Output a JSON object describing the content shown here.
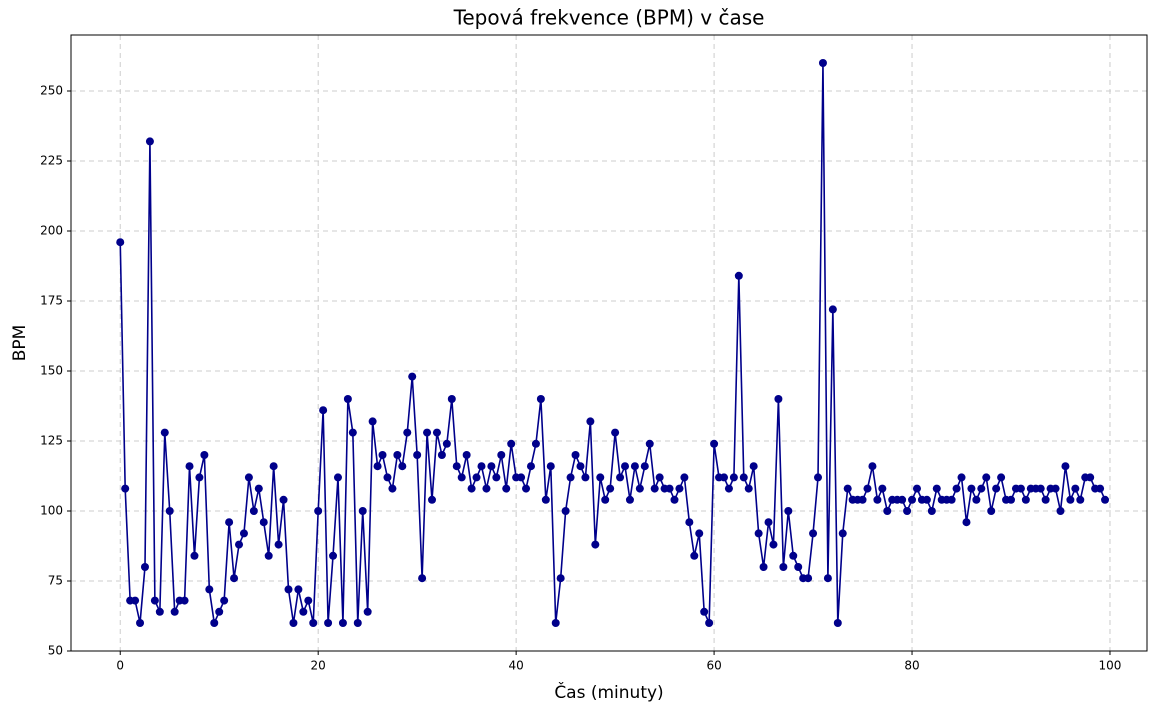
{
  "chart_data": {
    "type": "line",
    "title": "Tepová frekvence (BPM) v čase",
    "x_label": "Čas (minuty)",
    "y_label": "BPM",
    "x": [
      0,
      0.5,
      1,
      1.5,
      2,
      2.5,
      3,
      3.5,
      4,
      4.5,
      5,
      5.5,
      6,
      6.5,
      7,
      7.5,
      8,
      8.5,
      9,
      9.5,
      10,
      10.5,
      11,
      11.5,
      12,
      12.5,
      13,
      13.5,
      14,
      14.5,
      15,
      15.5,
      16,
      16.5,
      17,
      17.5,
      18,
      18.5,
      19,
      19.5,
      20,
      20.5,
      21,
      21.5,
      22,
      22.5,
      23,
      23.5,
      24,
      24.5,
      25,
      25.5,
      26,
      26.5,
      27,
      27.5,
      28,
      28.5,
      29,
      29.5,
      30,
      30.5,
      31,
      31.5,
      32,
      32.5,
      33,
      33.5,
      34,
      34.5,
      35,
      35.5,
      36,
      36.5,
      37,
      37.5,
      38,
      38.5,
      39,
      39.5,
      40,
      40.5,
      41,
      41.5,
      42,
      42.5,
      43,
      43.5,
      44,
      44.5,
      45,
      45.5,
      46,
      46.5,
      47,
      47.5,
      48,
      48.5,
      49,
      49.5,
      50,
      50.5,
      51,
      51.5,
      52,
      52.5,
      53,
      53.5,
      54,
      54.5,
      55,
      55.5,
      56,
      56.5,
      57,
      57.5,
      58,
      58.5,
      59,
      59.5,
      60,
      60.5,
      61,
      61.5,
      62,
      62.5,
      63,
      63.5,
      64,
      64.5,
      65,
      65.5,
      66,
      66.5,
      67,
      67.5,
      68,
      68.5,
      69,
      69.5,
      70,
      70.5,
      71,
      71.5,
      72,
      72.5,
      73,
      73.5,
      74,
      74.5,
      75,
      75.5,
      76,
      76.5,
      77,
      77.5,
      78,
      78.5,
      79,
      79.5,
      80,
      80.5,
      81,
      81.5,
      82,
      82.5,
      83,
      83.5,
      84,
      84.5,
      85,
      85.5,
      86,
      86.5,
      87,
      87.5,
      88,
      88.5,
      89,
      89.5,
      90,
      90.5,
      91,
      91.5,
      92,
      92.5,
      93,
      93.5,
      94,
      94.5,
      95,
      95.5,
      96,
      96.5,
      97,
      97.5,
      98,
      98.5,
      99,
      99.5
    ],
    "series": [
      {
        "color": "#00008b",
        "values": [
          196,
          108,
          68,
          68,
          60,
          80,
          232,
          68,
          64,
          128,
          100,
          64,
          68,
          68,
          116,
          84,
          112,
          120,
          72,
          60,
          64,
          68,
          96,
          76,
          88,
          92,
          112,
          100,
          108,
          96,
          84,
          116,
          88,
          104,
          72,
          60,
          72,
          64,
          68,
          60,
          100,
          136,
          60,
          84,
          112,
          60,
          140,
          128,
          60,
          100,
          64,
          132,
          116,
          120,
          112,
          108,
          120,
          116,
          128,
          148,
          120,
          76,
          128,
          104,
          128,
          120,
          124,
          140,
          116,
          112,
          120,
          108,
          112,
          116,
          108,
          116,
          112,
          120,
          108,
          124,
          112,
          112,
          108,
          116,
          124,
          140,
          104,
          116,
          60,
          76,
          100,
          112,
          120,
          116,
          112,
          132,
          88,
          112,
          104,
          108,
          128,
          112,
          116,
          104,
          116,
          108,
          116,
          124,
          108,
          112,
          108,
          108,
          104,
          108,
          112,
          96,
          84,
          92,
          64,
          60,
          124,
          112,
          112,
          108,
          112,
          184,
          112,
          108,
          116,
          92,
          80,
          96,
          88,
          140,
          80,
          100,
          84,
          80,
          76,
          76,
          92,
          112,
          260,
          76,
          172,
          60,
          92,
          108,
          104,
          104,
          104,
          108,
          116,
          104,
          108,
          100,
          104,
          104,
          104,
          100,
          104,
          108,
          104,
          104,
          100,
          108,
          104,
          104,
          104,
          108,
          112,
          96,
          108,
          104,
          108,
          112,
          100,
          108,
          112,
          104,
          104,
          108,
          108,
          104,
          108,
          108,
          108,
          104,
          108,
          108,
          100,
          116,
          104,
          108,
          104,
          112,
          112,
          108,
          108,
          104
        ]
      }
    ],
    "xlim": [
      -4.975,
      103.74
    ],
    "ylim": [
      50,
      270
    ],
    "xticks": [
      0,
      20,
      40,
      60,
      80,
      100
    ],
    "yticks": [
      50,
      75,
      100,
      125,
      150,
      175,
      200,
      225,
      250
    ],
    "grid": true
  }
}
